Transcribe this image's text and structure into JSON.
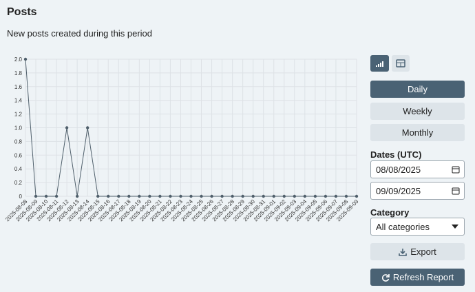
{
  "header": {
    "title": "Posts",
    "subtitle": "New posts created during this period"
  },
  "chart_data": {
    "type": "line",
    "categories": [
      "2025-08-08",
      "2025-08-09",
      "2025-08-10",
      "2025-08-11",
      "2025-08-12",
      "2025-08-13",
      "2025-08-14",
      "2025-08-15",
      "2025-08-16",
      "2025-08-17",
      "2025-08-18",
      "2025-08-19",
      "2025-08-20",
      "2025-08-21",
      "2025-08-22",
      "2025-08-23",
      "2025-08-24",
      "2025-08-25",
      "2025-08-26",
      "2025-08-27",
      "2025-08-28",
      "2025-08-29",
      "2025-08-30",
      "2025-08-31",
      "2025-09-01",
      "2025-09-02",
      "2025-09-03",
      "2025-09-04",
      "2025-09-05",
      "2025-09-06",
      "2025-09-07",
      "2025-09-08",
      "2025-09-09"
    ],
    "values": [
      2,
      0,
      0,
      0,
      1,
      0,
      1,
      0,
      0,
      0,
      0,
      0,
      0,
      0,
      0,
      0,
      0,
      0,
      0,
      0,
      0,
      0,
      0,
      0,
      0,
      0,
      0,
      0,
      0,
      0,
      0,
      0,
      0
    ],
    "color": "#4f5f6b",
    "ylim": [
      0,
      2
    ],
    "yticks": [
      0,
      0.2,
      0.4,
      0.6,
      0.8,
      {
        "value": 1,
        "label": "1.0"
      },
      1.2,
      1.4,
      1.6,
      1.8,
      {
        "value": 2,
        "label": "2.0"
      }
    ],
    "grid": true
  },
  "controls": {
    "periods": [
      "Daily",
      "Weekly",
      "Monthly"
    ],
    "dates_label": "Dates (UTC)",
    "start_date": "08/08/2025",
    "end_date": "09/09/2025",
    "category_label": "Category",
    "category": "All categories",
    "export": "Export",
    "refresh": "Refresh Report"
  }
}
